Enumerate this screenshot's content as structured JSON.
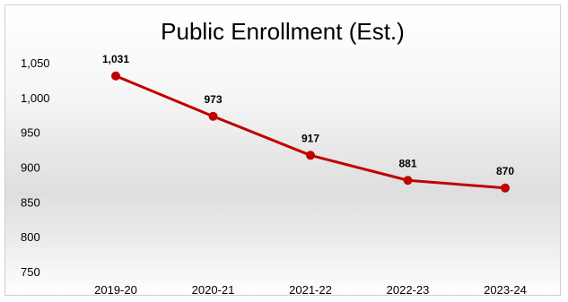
{
  "chart_data": {
    "type": "line",
    "title": "Public Enrollment (Est.)",
    "xlabel": "",
    "ylabel": "",
    "categories": [
      "2019-20",
      "2020-21",
      "2021-22",
      "2022-23",
      "2023-24"
    ],
    "series": [
      {
        "values": [
          1031,
          973,
          917,
          881,
          870
        ]
      }
    ],
    "data_labels": [
      "1,031",
      "973",
      "917",
      "881",
      "870"
    ],
    "ylim": [
      750,
      1050
    ],
    "yticks": [
      750,
      800,
      850,
      900,
      950,
      1000,
      1050
    ],
    "ytick_labels": [
      "750",
      "800",
      "850",
      "900",
      "950",
      "1,000",
      "1,050"
    ],
    "grid": false,
    "line_color": "#c00000"
  }
}
